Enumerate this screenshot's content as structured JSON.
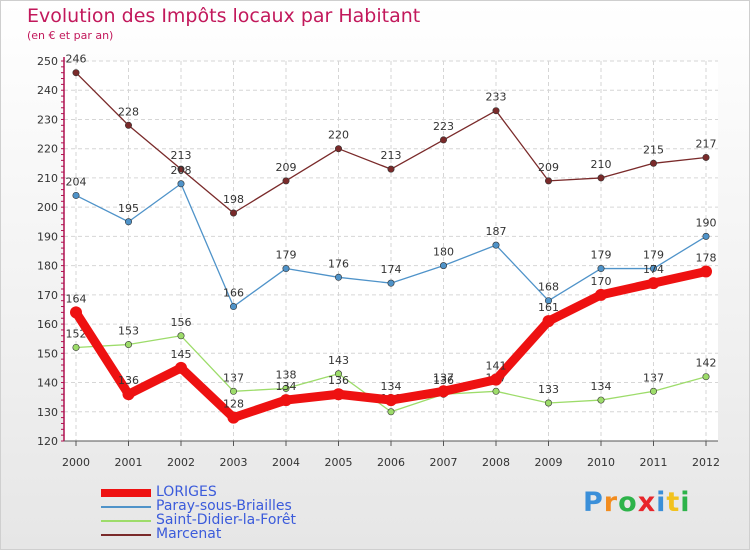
{
  "header": {
    "title": "Evolution des Impôts locaux par Habitant",
    "subtitle": "(en € et par an)"
  },
  "brand": {
    "letters": [
      "P",
      "r",
      "o",
      "x",
      "i",
      "t",
      "i"
    ],
    "colors": [
      "#3a8fd9",
      "#f28c1e",
      "#2db34a",
      "#e8262b",
      "#3a8fd9",
      "#f2c21e",
      "#2db34a"
    ]
  },
  "chart_data": {
    "type": "line",
    "title": "Evolution des Impôts locaux par Habitant",
    "subtitle": "(en € et par an)",
    "xlabel": "",
    "ylabel": "",
    "x": [
      "2000",
      "2001",
      "2002",
      "2003",
      "2004",
      "2005",
      "2006",
      "2007",
      "2008",
      "2009",
      "2010",
      "2011",
      "2012"
    ],
    "ylim": [
      120,
      250
    ],
    "yticks": [
      120,
      130,
      140,
      150,
      160,
      170,
      180,
      190,
      200,
      210,
      220,
      230,
      240,
      250
    ],
    "grid": true,
    "legend_position": "bottom-left",
    "series": [
      {
        "name": "LORIGES",
        "color": "#ee1111",
        "values": [
          164,
          136,
          145,
          128,
          134,
          136,
          134,
          137,
          141,
          161,
          170,
          174,
          178
        ]
      },
      {
        "name": "Paray-sous-Briailles",
        "color": "#4f93c9",
        "values": [
          204,
          195,
          208,
          166,
          179,
          176,
          174,
          180,
          187,
          168,
          179,
          179,
          190
        ]
      },
      {
        "name": "Saint-Didier-la-Forêt",
        "color": "#9ddc6a",
        "values": [
          152,
          153,
          156,
          137,
          138,
          143,
          130,
          136,
          137,
          133,
          134,
          137,
          142
        ]
      },
      {
        "name": "Marcenat",
        "color": "#7a2a2a",
        "values": [
          246,
          228,
          213,
          198,
          209,
          220,
          213,
          223,
          233,
          209,
          210,
          215,
          217
        ]
      }
    ]
  }
}
